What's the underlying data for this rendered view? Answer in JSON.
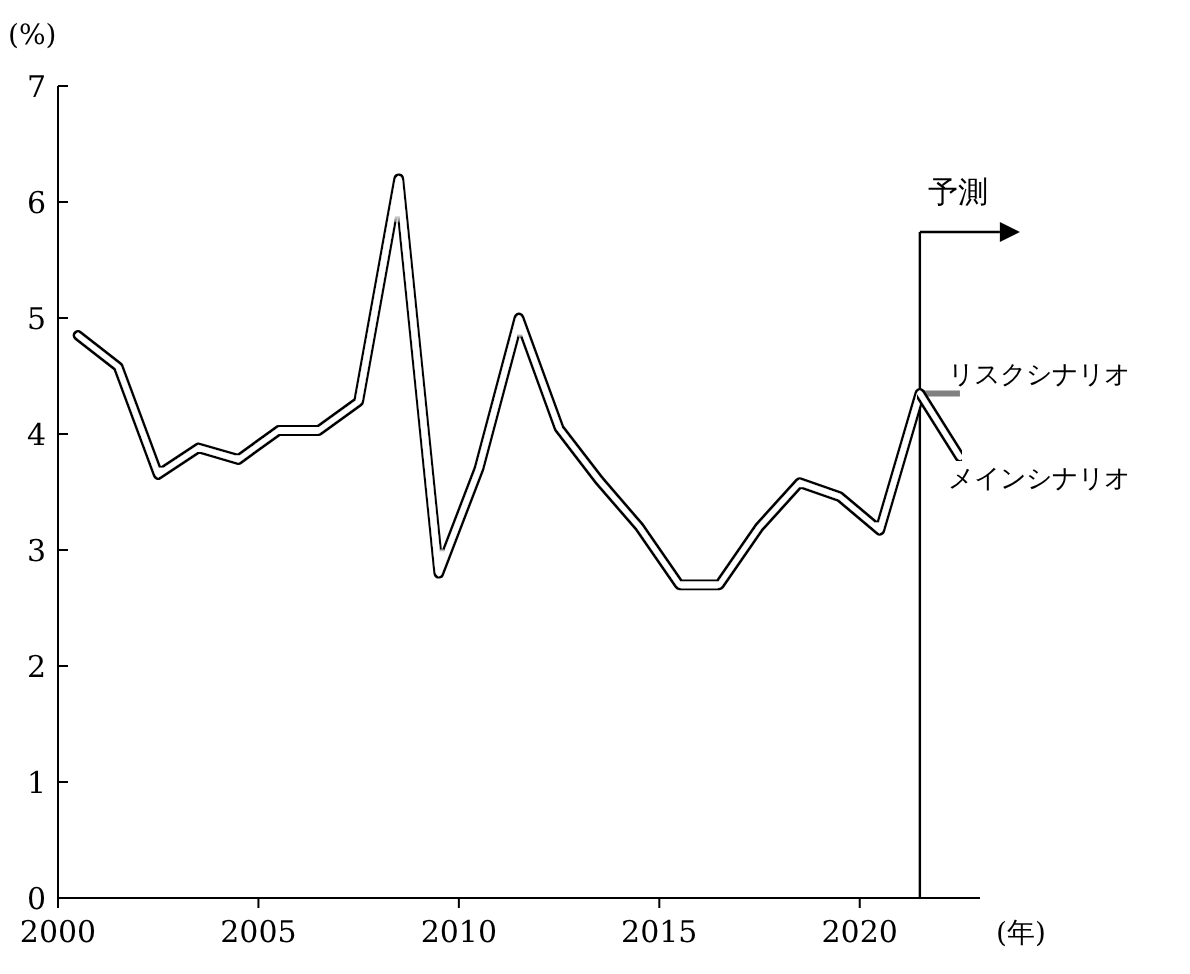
{
  "chart_data": {
    "type": "line",
    "xlabel": "(年)",
    "ylabel": "(%)",
    "xlim": [
      2000,
      2023
    ],
    "ylim": [
      0,
      7
    ],
    "xticks": [
      2000,
      2005,
      2010,
      2015,
      2020
    ],
    "yticks": [
      0,
      1,
      2,
      3,
      4,
      5,
      6,
      7
    ],
    "series": [
      {
        "color": "#000000",
        "x": [
          2000.5,
          2001.5,
          2002.5,
          2003.5,
          2004.5,
          2005.5,
          2006.5,
          2007.5,
          2008.5,
          2009.5,
          2010.5,
          2011.5,
          2012.5,
          2013.5,
          2014.5,
          2015.5,
          2016.5,
          2017.5,
          2018.5,
          2019.5,
          2020.5,
          2021.5
        ],
        "values": [
          4.85,
          4.58,
          3.65,
          3.88,
          3.78,
          4.03,
          4.03,
          4.28,
          6.2,
          2.8,
          3.7,
          5.0,
          4.05,
          3.6,
          3.2,
          2.7,
          2.7,
          3.2,
          3.58,
          3.46,
          3.17,
          4.35
        ]
      },
      {
        "name": "リスクシナリオ",
        "color": "#808080",
        "x": [
          2021.5,
          2022.5
        ],
        "values": [
          4.35,
          4.35
        ]
      },
      {
        "name": "メインシナリオ",
        "color": "#000000",
        "x": [
          2021.5,
          2022.5
        ],
        "values": [
          4.35,
          3.8
        ]
      }
    ],
    "ref_lines": [
      {
        "axis": "x",
        "value": 2021.5,
        "label": "予測",
        "color": "#000000"
      }
    ]
  }
}
